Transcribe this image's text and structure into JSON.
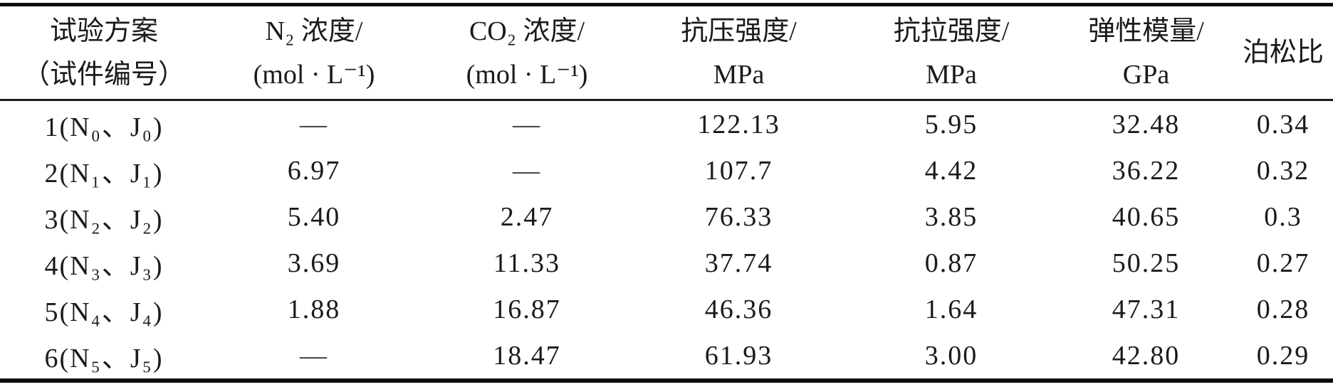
{
  "table": {
    "columns": [
      {
        "line1": "试验方案",
        "line2": "（试件编号）"
      },
      {
        "line1": "N₂ 浓度/",
        "line2": "(mol · L⁻¹)"
      },
      {
        "line1": "CO₂ 浓度/",
        "line2": "(mol · L⁻¹)"
      },
      {
        "line1": "抗压强度/",
        "line2": "MPa"
      },
      {
        "line1": "抗拉强度/",
        "line2": "MPa"
      },
      {
        "line1": "弹性模量/",
        "line2": "GPa"
      },
      {
        "line1": "泊松比",
        "line2": ""
      }
    ],
    "rows": [
      [
        "1(N₀、J₀)",
        "—",
        "—",
        "122.13",
        "5.95",
        "32.48",
        "0.34"
      ],
      [
        "2(N₁、J₁)",
        "6.97",
        "—",
        "107.7",
        "4.42",
        "36.22",
        "0.32"
      ],
      [
        "3(N₂、J₂)",
        "5.40",
        "2.47",
        "76.33",
        "3.85",
        "40.65",
        "0.3"
      ],
      [
        "4(N₃、J₃)",
        "3.69",
        "11.33",
        "37.74",
        "0.87",
        "50.25",
        "0.27"
      ],
      [
        "5(N₄、J₄)",
        "1.88",
        "16.87",
        "46.36",
        "1.64",
        "47.31",
        "0.28"
      ],
      [
        "6(N₅、J₅)",
        "—",
        "18.47",
        "61.93",
        "3.00",
        "42.80",
        "0.29"
      ]
    ]
  }
}
